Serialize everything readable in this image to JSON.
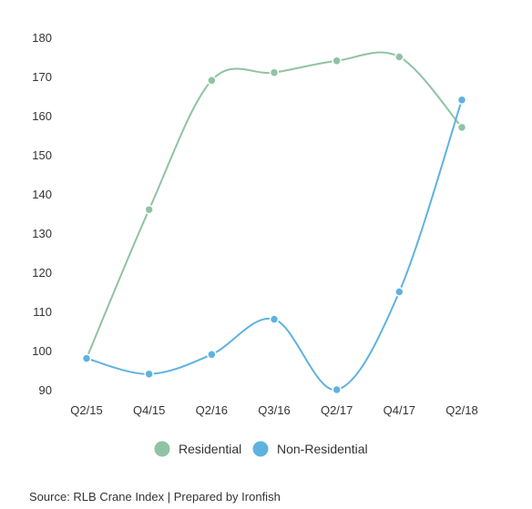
{
  "chart_data": {
    "type": "line",
    "title": "",
    "xlabel": "",
    "ylabel": "",
    "categories": [
      "Q2/15",
      "Q4/15",
      "Q2/16",
      "Q3/16",
      "Q2/17",
      "Q4/17",
      "Q2/18"
    ],
    "ylim": [
      90,
      180
    ],
    "yticks": [
      90,
      100,
      110,
      120,
      130,
      140,
      150,
      160,
      170,
      180
    ],
    "grid": false,
    "legend_position": "bottom",
    "series": [
      {
        "name": "Residential",
        "color": "#8fc3a2",
        "marker_color": "#8fc3a2",
        "points": [
          {
            "x": "Q2/15",
            "y": 98
          },
          {
            "x": "Q4/15",
            "y": 136
          },
          {
            "x": "Q2/16",
            "y": 169
          },
          {
            "x": "Q3/16",
            "y": 171
          },
          {
            "x": "Q2/17",
            "y": 174
          },
          {
            "x": "Q4/17",
            "y": 175
          },
          {
            "x": "Q2/18",
            "y": 157
          }
        ]
      },
      {
        "name": "Non-Residential",
        "color": "#5fb2e0",
        "marker_color": "#5fb2e0",
        "points": [
          {
            "x": "Q2/15",
            "y": 98
          },
          {
            "x": "Q4/15",
            "y": 94
          },
          {
            "x": "Q2/16",
            "y": 99
          },
          {
            "x": "Q3/16",
            "y": 108
          },
          {
            "x": "Q2/17",
            "y": 90
          },
          {
            "x": "Q4/17",
            "y": 115
          },
          {
            "x": "Q2/18",
            "y": 164
          }
        ]
      }
    ]
  },
  "source": "Source: RLB Crane Index | Prepared by Ironfish"
}
